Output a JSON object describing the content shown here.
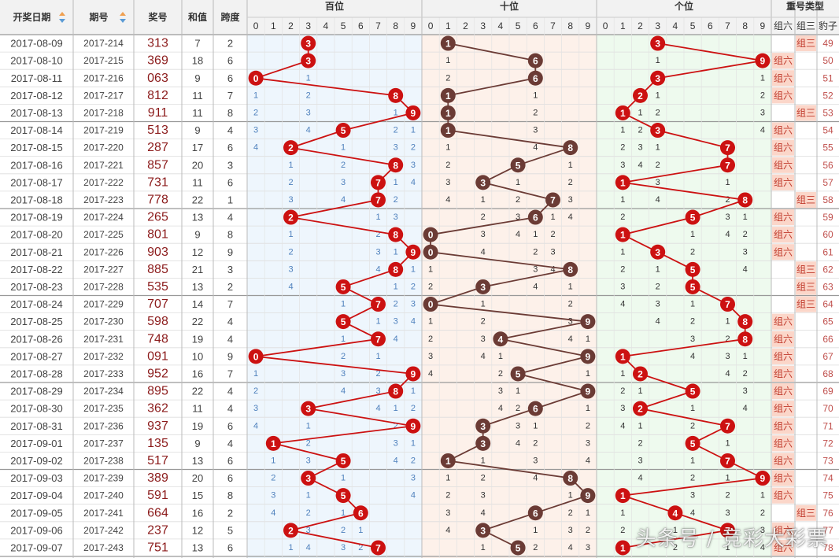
{
  "header": {
    "date_label": "开奖日期",
    "period_label": "期号",
    "number_label": "奖号",
    "sum_label": "和值",
    "span_label": "跨度",
    "hundreds_label": "百位",
    "tens_label": "十位",
    "units_label": "个位",
    "repeat_label": "重号类型",
    "group6_label": "组六",
    "group3_label": "组三",
    "leopard_label": "豹子",
    "digits": [
      "0",
      "1",
      "2",
      "3",
      "4",
      "5",
      "6",
      "7",
      "8",
      "9"
    ]
  },
  "watermark": "头条号 / 竞彩大彩票",
  "colors": {
    "hundreds_ball": "#cc1111",
    "tens_ball": "#6b3b35",
    "units_ball": "#cc1111",
    "hundreds_bg": "#eef6fd",
    "tens_bg": "#fdf1ea",
    "units_bg": "#eefaee",
    "miss_bar": "#d2dde8",
    "miss_text": "#c0504d",
    "miss_text_blue": "#4f81bd",
    "repeat_bg": "#fbd6c9",
    "header_bg": "#f2f2f2"
  },
  "chart_data": {
    "type": "table",
    "rows": [
      {
        "date": "2017-08-09",
        "period": "2017-214",
        "number": "313",
        "sum": 7,
        "span": 2,
        "repeat": "组三",
        "counter": 49
      },
      {
        "date": "2017-08-10",
        "period": "2017-215",
        "number": "369",
        "sum": 18,
        "span": 6,
        "repeat": "组六",
        "counter": 50
      },
      {
        "date": "2017-08-11",
        "period": "2017-216",
        "number": "063",
        "sum": 9,
        "span": 6,
        "repeat": "组六",
        "counter": 51
      },
      {
        "date": "2017-08-12",
        "period": "2017-217",
        "number": "812",
        "sum": 11,
        "span": 7,
        "repeat": "组六",
        "counter": 52
      },
      {
        "date": "2017-08-13",
        "period": "2017-218",
        "number": "911",
        "sum": 11,
        "span": 8,
        "repeat": "组三",
        "counter": 53
      },
      {
        "date": "2017-08-14",
        "period": "2017-219",
        "number": "513",
        "sum": 9,
        "span": 4,
        "repeat": "组六",
        "counter": 54
      },
      {
        "date": "2017-08-15",
        "period": "2017-220",
        "number": "287",
        "sum": 17,
        "span": 6,
        "repeat": "组六",
        "counter": 55
      },
      {
        "date": "2017-08-16",
        "period": "2017-221",
        "number": "857",
        "sum": 20,
        "span": 3,
        "repeat": "组六",
        "counter": 56
      },
      {
        "date": "2017-08-17",
        "period": "2017-222",
        "number": "731",
        "sum": 11,
        "span": 6,
        "repeat": "组六",
        "counter": 57
      },
      {
        "date": "2017-08-18",
        "period": "2017-223",
        "number": "778",
        "sum": 22,
        "span": 1,
        "repeat": "组三",
        "counter": 58
      },
      {
        "date": "2017-08-19",
        "period": "2017-224",
        "number": "265",
        "sum": 13,
        "span": 4,
        "repeat": "组六",
        "counter": 59
      },
      {
        "date": "2017-08-20",
        "period": "2017-225",
        "number": "801",
        "sum": 9,
        "span": 8,
        "repeat": "组六",
        "counter": 60
      },
      {
        "date": "2017-08-21",
        "period": "2017-226",
        "number": "903",
        "sum": 12,
        "span": 9,
        "repeat": "组六",
        "counter": 61
      },
      {
        "date": "2017-08-22",
        "period": "2017-227",
        "number": "885",
        "sum": 21,
        "span": 3,
        "repeat": "组三",
        "counter": 62
      },
      {
        "date": "2017-08-23",
        "period": "2017-228",
        "number": "535",
        "sum": 13,
        "span": 2,
        "repeat": "组三",
        "counter": 63
      },
      {
        "date": "2017-08-24",
        "period": "2017-229",
        "number": "707",
        "sum": 14,
        "span": 7,
        "repeat": "组三",
        "counter": 64
      },
      {
        "date": "2017-08-25",
        "period": "2017-230",
        "number": "598",
        "sum": 22,
        "span": 4,
        "repeat": "组六",
        "counter": 65
      },
      {
        "date": "2017-08-26",
        "period": "2017-231",
        "number": "748",
        "sum": 19,
        "span": 4,
        "repeat": "组六",
        "counter": 66
      },
      {
        "date": "2017-08-27",
        "period": "2017-232",
        "number": "091",
        "sum": 10,
        "span": 9,
        "repeat": "组六",
        "counter": 67
      },
      {
        "date": "2017-08-28",
        "period": "2017-233",
        "number": "952",
        "sum": 16,
        "span": 7,
        "repeat": "组六",
        "counter": 68
      },
      {
        "date": "2017-08-29",
        "period": "2017-234",
        "number": "895",
        "sum": 22,
        "span": 4,
        "repeat": "组六",
        "counter": 69
      },
      {
        "date": "2017-08-30",
        "period": "2017-235",
        "number": "362",
        "sum": 11,
        "span": 4,
        "repeat": "组六",
        "counter": 70
      },
      {
        "date": "2017-08-31",
        "period": "2017-236",
        "number": "937",
        "sum": 19,
        "span": 6,
        "repeat": "组六",
        "counter": 71
      },
      {
        "date": "2017-09-01",
        "period": "2017-237",
        "number": "135",
        "sum": 9,
        "span": 4,
        "repeat": "组六",
        "counter": 72
      },
      {
        "date": "2017-09-02",
        "period": "2017-238",
        "number": "517",
        "sum": 13,
        "span": 6,
        "repeat": "组六",
        "counter": 73
      },
      {
        "date": "2017-09-03",
        "period": "2017-239",
        "number": "389",
        "sum": 20,
        "span": 6,
        "repeat": "组六",
        "counter": 74
      },
      {
        "date": "2017-09-04",
        "period": "2017-240",
        "number": "591",
        "sum": 15,
        "span": 8,
        "repeat": "组六",
        "counter": 75
      },
      {
        "date": "2017-09-05",
        "period": "2017-241",
        "number": "664",
        "sum": 16,
        "span": 2,
        "repeat": "组三",
        "counter": 76
      },
      {
        "date": "2017-09-06",
        "period": "2017-242",
        "number": "237",
        "sum": 12,
        "span": 5,
        "repeat": "组六",
        "counter": 77
      },
      {
        "date": "2017-09-07",
        "period": "2017-243",
        "number": "751",
        "sum": 13,
        "span": 6,
        "repeat": "组六",
        "counter": 78
      }
    ]
  }
}
